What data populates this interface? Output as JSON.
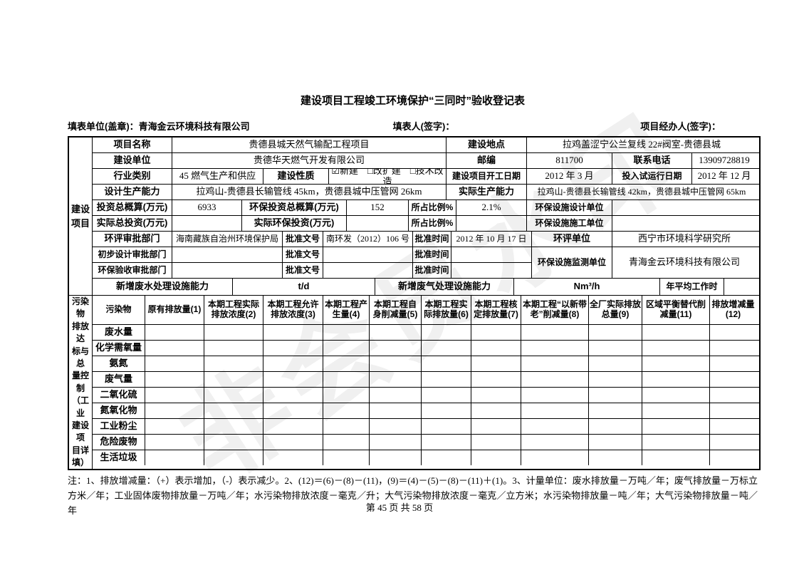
{
  "title": "建设项目工程竣工环境保护“三同时”验收登记表",
  "header": {
    "unit": "填表单位(盖章)：青海金云环境科技有限公司",
    "person": "填表人(签字)：",
    "agent": "项目经办人(签字)："
  },
  "watermark": "非会员水印",
  "s1": {
    "side": "建设\n项目",
    "projName_l": "项目名称",
    "projName": "贵德县城天然气输配工程项目",
    "loc_l": "建设地点",
    "loc": "拉鸡盖涩宁公兰复线 22#阀室-贵德县城",
    "unit_l": "建设单位",
    "unit": "贵德华天燃气开发有限公司",
    "post_l": "邮编",
    "post": "811700",
    "tel_l": "联系电话",
    "tel": "13909728819",
    "ind_l": "行业类别",
    "ind": "45 燃气生产和供应",
    "nat_l": "建设性质",
    "nat": "☑新建　□改扩建　□技术改造",
    "start_l": "建设项目开工日期",
    "start": "2012 年 3 月",
    "trial_l": "投入试运行日期",
    "trial": "2012 年 12 月",
    "designCap_l": "设计生产能力",
    "designCap": "拉鸡山-贵德县长输管线 45km，贵德县城中压管网 26km",
    "actualCap_l": "实际生产能力",
    "actualCap": "拉鸡山-贵德县长输管线 42km，贵德县城中压管网 65km",
    "invest_l": "投资总概算(万元)",
    "invest": "6933",
    "epInvest_l": "环保投资总概算(万元)",
    "epInvest": "152",
    "ratio_l": "所占比例%",
    "ratio": "2.1%",
    "epDesign_l": "环保设施设计单位",
    "epDesign": "",
    "actInvest_l": "实际总投资(万元)",
    "actInvest": "",
    "actEpInvest_l": "实际环保投资(万元)",
    "actEpInvest": "",
    "ratio2_l": "所占比例%",
    "ratio2": "",
    "epBuild_l": "环保设施施工单位",
    "epBuild": "",
    "eia_l": "环评审批部门",
    "eia": "海南藏族自治州环境保护局",
    "doc1_l": "批准文号",
    "doc1": "南环发（2012）106 号",
    "time1_l": "批准时间",
    "time1": "2012 年 10 月 17 日",
    "eiaUnit_l": "环评单位",
    "eiaUnit": "西宁市环境科学研究所",
    "design_l": "初步设计审批部门",
    "doc2_l": "批准文号",
    "time2_l": "批准时间",
    "accept_l": "环保验收审批部门",
    "doc3_l": "批准文号",
    "time3_l": "批准时间",
    "monitor_l": "环保设施监测单位",
    "monitor": "青海金云环境科技有限公司",
    "ww_l": "新增废水处理设施能力",
    "ww_u": "t/d",
    "wg_l": "新增废气处理设施能力",
    "wg_u": "Nm³/h",
    "hours_l": "年平均工作时"
  },
  "s2": {
    "side": "污染物\n排放达\n标与总\n量控制\n（工业\n建设项\n目详\n填）",
    "headers": [
      "污染物",
      "原有排放量(1)",
      "本期工程实际排放浓度(2)",
      "本期工程允许排放浓度(3)",
      "本期工程产生量(4)",
      "本期工程自身削减量(5)",
      "本期工程实际排放量(6)",
      "本期工程核定排放量(7)",
      "本期工程“以新带老”削减量(8)",
      "全厂实际排放总量(9)",
      "区域平衡替代削减量(11)",
      "排放增减量(12)"
    ],
    "pollutants": [
      "废水量",
      "化学需氧量",
      "氨氮",
      "废气量",
      "二氧化硫",
      "氮氧化物",
      "工业粉尘",
      "危险废物",
      "生活垃圾"
    ]
  },
  "note": "注：1、排放增减量：（+）表示增加，（-）表示减少。2、(12)＝(6)－(8)－(11)，(9)＝(4)－(5)－(8)－(11)＋(1)。3、计量单位：废水排放量－万吨／年；废气排放量－万标立方米／年；工业固体废物排放量－万吨／年；水污染物排放浓度－毫克／升；大气污染物排放浓度－毫克／立方米；水污染物排放量－吨／年；大气污染物排放量－吨／年",
  "footer": "第 45 页 共 58 页"
}
